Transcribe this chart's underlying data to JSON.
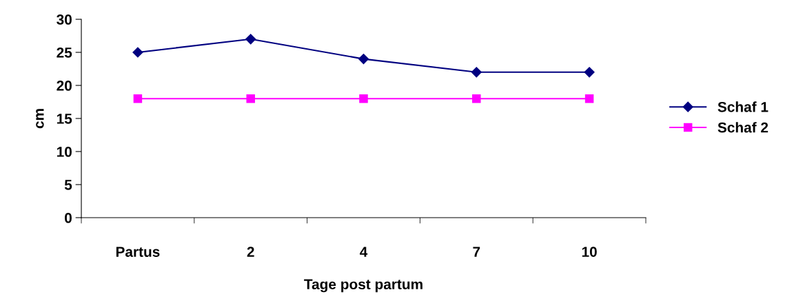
{
  "chart_data": {
    "type": "line",
    "xlabel": "Tage post partum",
    "ylabel": "cm",
    "categories": [
      "Partus",
      "2",
      "4",
      "7",
      "10"
    ],
    "series": [
      {
        "name": "Schaf 1",
        "color": "#000080",
        "values": [
          25,
          27,
          24,
          22,
          22
        ],
        "marker": "diamond"
      },
      {
        "name": "Schaf 2",
        "color": "#ff00ff",
        "values": [
          18,
          18,
          18,
          18,
          18
        ],
        "marker": "square"
      }
    ],
    "ylim": [
      0,
      30
    ],
    "yticks": [
      0,
      5,
      10,
      15,
      20,
      25,
      30
    ],
    "grid": false,
    "legend": "right",
    "line_style": "solid"
  }
}
